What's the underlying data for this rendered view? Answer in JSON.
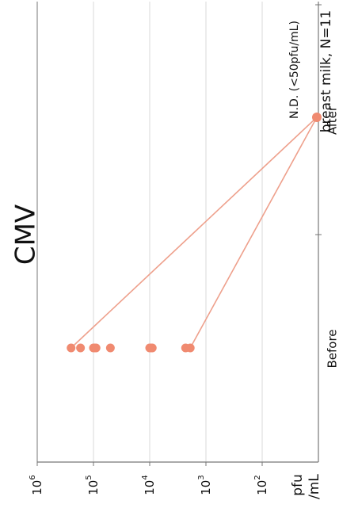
{
  "chart_data": {
    "type": "scatter",
    "title": "CMV",
    "subtitle": "breast milk, N=11",
    "ylabel_line1": "pfu",
    "ylabel_line2": "/mL",
    "categories": [
      "Before",
      "After"
    ],
    "annotation": "N.D. (<50pfu/mL)",
    "y_scale": "log",
    "ylim": [
      50,
      1000000
    ],
    "y_ticks": [
      {
        "base": "10",
        "exp": "6",
        "value": 1000000
      },
      {
        "base": "10",
        "exp": "5",
        "value": 100000
      },
      {
        "base": "10",
        "exp": "4",
        "value": 10000
      },
      {
        "base": "10",
        "exp": "3",
        "value": 1000
      },
      {
        "base": "10",
        "exp": "2",
        "value": 100
      }
    ],
    "grid": true,
    "series": [
      {
        "values_before": [
          250000,
          170000,
          100000,
          95000,
          90000,
          50000,
          10000,
          9500,
          9000,
          2300,
          1900
        ],
        "values_after": [
          "N.D.",
          "N.D.",
          "N.D.",
          "N.D.",
          "N.D.",
          "N.D.",
          "N.D.",
          "N.D.",
          "N.D.",
          "N.D.",
          "N.D."
        ]
      }
    ],
    "connecting_lines_from": [
      250000,
      1900
    ],
    "colors": {
      "point": "#f08a70",
      "line": "#eea08c",
      "axis": "#777777",
      "grid": "#d9d9d9"
    }
  }
}
